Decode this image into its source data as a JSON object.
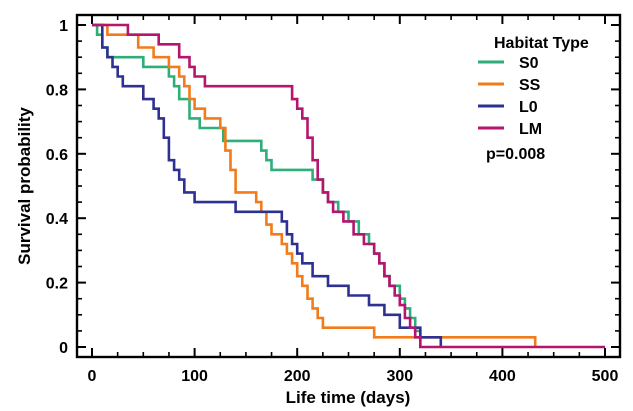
{
  "chart_data": {
    "type": "line",
    "subtype": "step",
    "title": "",
    "xlabel": "Life time (days)",
    "ylabel": "Survival probability",
    "xlim": [
      0,
      500
    ],
    "ylim": [
      0,
      1
    ],
    "xticks": [
      0,
      100,
      200,
      300,
      400,
      500
    ],
    "yticks": [
      0,
      0.2,
      0.4,
      0.6,
      0.8,
      1
    ],
    "ytick_labels": [
      "0",
      "0.2",
      "0.4",
      "0.6",
      "0.8",
      "1"
    ],
    "grid": false,
    "legend": {
      "title": "Habitat Type",
      "placement": "top-right",
      "entries": [
        "S0",
        "SS",
        "L0",
        "LM"
      ]
    },
    "annotation": "p=0.008",
    "series": [
      {
        "name": "S0",
        "color": "#2fae7a",
        "points": [
          [
            0,
            1
          ],
          [
            5,
            0.97
          ],
          [
            10,
            0.93
          ],
          [
            15,
            0.9
          ],
          [
            35,
            0.9
          ],
          [
            50,
            0.87
          ],
          [
            70,
            0.87
          ],
          [
            75,
            0.84
          ],
          [
            80,
            0.81
          ],
          [
            85,
            0.77
          ],
          [
            95,
            0.71
          ],
          [
            105,
            0.68
          ],
          [
            125,
            0.68
          ],
          [
            128,
            0.64
          ],
          [
            160,
            0.64
          ],
          [
            165,
            0.61
          ],
          [
            170,
            0.58
          ],
          [
            175,
            0.55
          ],
          [
            210,
            0.55
          ],
          [
            215,
            0.52
          ],
          [
            225,
            0.48
          ],
          [
            230,
            0.45
          ],
          [
            240,
            0.42
          ],
          [
            250,
            0.39
          ],
          [
            260,
            0.35
          ],
          [
            270,
            0.32
          ],
          [
            275,
            0.29
          ],
          [
            280,
            0.26
          ],
          [
            285,
            0.22
          ],
          [
            290,
            0.19
          ],
          [
            300,
            0.15
          ],
          [
            305,
            0.12
          ],
          [
            310,
            0.09
          ],
          [
            315,
            0.05
          ],
          [
            320,
            0
          ]
        ]
      },
      {
        "name": "SS",
        "color": "#f27c1c",
        "points": [
          [
            0,
            1
          ],
          [
            15,
            0.97
          ],
          [
            45,
            0.93
          ],
          [
            60,
            0.9
          ],
          [
            75,
            0.87
          ],
          [
            85,
            0.84
          ],
          [
            90,
            0.81
          ],
          [
            95,
            0.77
          ],
          [
            100,
            0.74
          ],
          [
            110,
            0.71
          ],
          [
            125,
            0.68
          ],
          [
            130,
            0.61
          ],
          [
            135,
            0.55
          ],
          [
            140,
            0.48
          ],
          [
            160,
            0.45
          ],
          [
            165,
            0.42
          ],
          [
            170,
            0.38
          ],
          [
            175,
            0.35
          ],
          [
            185,
            0.32
          ],
          [
            190,
            0.29
          ],
          [
            195,
            0.26
          ],
          [
            200,
            0.22
          ],
          [
            205,
            0.19
          ],
          [
            210,
            0.15
          ],
          [
            215,
            0.12
          ],
          [
            220,
            0.09
          ],
          [
            225,
            0.06
          ],
          [
            235,
            0.06
          ],
          [
            275,
            0.03
          ],
          [
            430,
            0.03
          ],
          [
            432,
            0
          ]
        ]
      },
      {
        "name": "L0",
        "color": "#2e3192",
        "points": [
          [
            0,
            1
          ],
          [
            10,
            0.93
          ],
          [
            15,
            0.9
          ],
          [
            20,
            0.87
          ],
          [
            25,
            0.84
          ],
          [
            30,
            0.81
          ],
          [
            50,
            0.77
          ],
          [
            60,
            0.74
          ],
          [
            65,
            0.71
          ],
          [
            70,
            0.65
          ],
          [
            75,
            0.58
          ],
          [
            80,
            0.55
          ],
          [
            85,
            0.52
          ],
          [
            90,
            0.48
          ],
          [
            100,
            0.45
          ],
          [
            135,
            0.45
          ],
          [
            140,
            0.42
          ],
          [
            180,
            0.42
          ],
          [
            185,
            0.39
          ],
          [
            190,
            0.35
          ],
          [
            195,
            0.32
          ],
          [
            200,
            0.29
          ],
          [
            205,
            0.26
          ],
          [
            215,
            0.22
          ],
          [
            230,
            0.19
          ],
          [
            250,
            0.16
          ],
          [
            270,
            0.13
          ],
          [
            285,
            0.1
          ],
          [
            300,
            0.06
          ],
          [
            320,
            0.03
          ],
          [
            335,
            0.03
          ],
          [
            340,
            0
          ]
        ]
      },
      {
        "name": "LM",
        "color": "#b5156f",
        "points": [
          [
            0,
            1
          ],
          [
            30,
            1
          ],
          [
            35,
            0.97
          ],
          [
            60,
            0.97
          ],
          [
            65,
            0.94
          ],
          [
            80,
            0.94
          ],
          [
            85,
            0.9
          ],
          [
            95,
            0.87
          ],
          [
            100,
            0.84
          ],
          [
            110,
            0.81
          ],
          [
            190,
            0.81
          ],
          [
            195,
            0.77
          ],
          [
            200,
            0.74
          ],
          [
            205,
            0.71
          ],
          [
            210,
            0.65
          ],
          [
            215,
            0.58
          ],
          [
            220,
            0.52
          ],
          [
            225,
            0.48
          ],
          [
            230,
            0.45
          ],
          [
            235,
            0.42
          ],
          [
            245,
            0.39
          ],
          [
            255,
            0.35
          ],
          [
            265,
            0.32
          ],
          [
            275,
            0.29
          ],
          [
            280,
            0.26
          ],
          [
            285,
            0.22
          ],
          [
            290,
            0.19
          ],
          [
            295,
            0.16
          ],
          [
            300,
            0.13
          ],
          [
            305,
            0.09
          ],
          [
            310,
            0.06
          ],
          [
            315,
            0.03
          ],
          [
            320,
            0
          ],
          [
            500,
            0
          ]
        ]
      }
    ]
  }
}
